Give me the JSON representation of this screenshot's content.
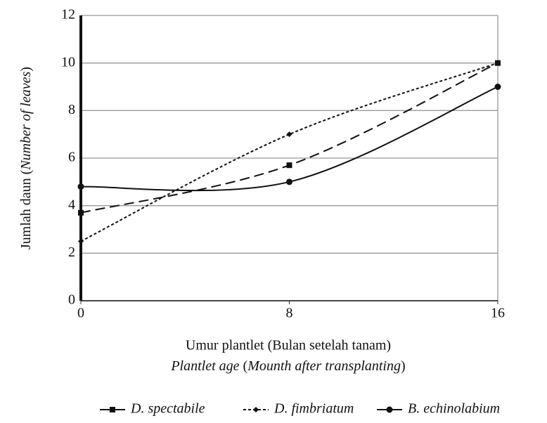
{
  "chart_data": {
    "type": "line",
    "y_label": [
      "Jumlah daun (",
      "Number of leaves",
      ")"
    ],
    "x_label": "Umur plantlet (Bulan setelah tanam)",
    "x_label_en": [
      "Plantlet age",
      " (",
      "Mounth after transplanting",
      ")"
    ],
    "x": [
      0,
      8,
      16
    ],
    "xlim": [
      0,
      16
    ],
    "xticks": [
      0,
      8,
      16
    ],
    "ylim": [
      0,
      12
    ],
    "yticks": [
      0,
      2,
      4,
      6,
      8,
      10,
      12
    ],
    "grid": true,
    "legend": "bottom",
    "series": [
      {
        "name": "D. spectabile",
        "color": "#111111",
        "values": [
          3.7,
          5.7,
          10
        ]
      },
      {
        "name": "D. fimbriatum",
        "color": "#111111",
        "values": [
          2.5,
          7,
          10
        ]
      },
      {
        "name": "B. echinolabium",
        "color": "#111111",
        "values": [
          4.8,
          5,
          9
        ]
      }
    ]
  }
}
